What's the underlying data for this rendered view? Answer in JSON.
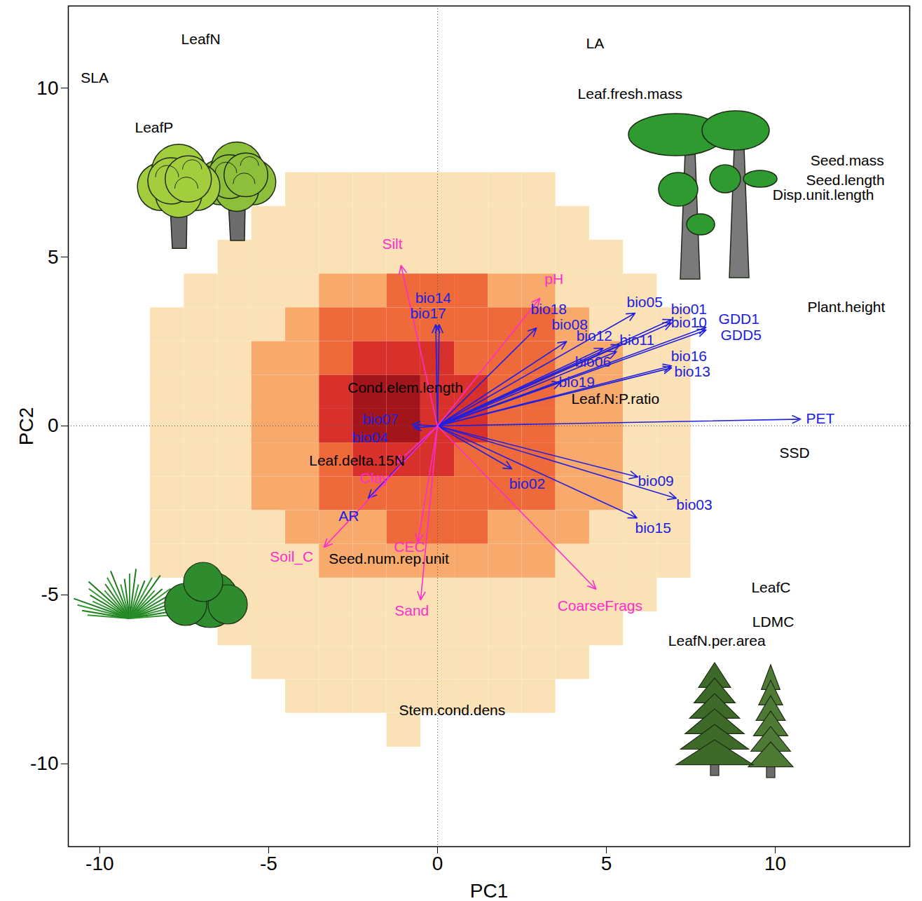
{
  "chart_data": {
    "type": "biplot",
    "x_label": "PC1",
    "y_label": "PC2",
    "xlim": [
      -10.93,
      13.98
    ],
    "ylim": [
      -12.45,
      12.43
    ],
    "xticks": [
      -10,
      -5,
      0,
      5,
      10
    ],
    "yticks": [
      -10,
      -5,
      0,
      5,
      10
    ],
    "origin": [
      0,
      0
    ],
    "density": {
      "x": [
        -9,
        -8,
        -7,
        -6,
        -5,
        -4,
        -3,
        -2,
        -1,
        0,
        1,
        2,
        3,
        4,
        5,
        6,
        7,
        8
      ],
      "y": [
        8,
        7,
        6,
        5,
        4,
        3,
        2,
        1,
        0,
        -1,
        -2,
        -3,
        -4,
        -5,
        -6,
        -7,
        -8,
        -9
      ],
      "levels": [
        [
          0,
          0,
          0,
          0,
          0,
          0,
          0,
          0,
          0,
          0,
          0,
          0,
          0,
          0,
          0,
          0,
          0,
          0
        ],
        [
          0,
          0,
          0,
          0,
          0,
          1,
          1,
          1,
          1,
          1,
          1,
          1,
          1,
          0,
          0,
          0,
          0,
          0
        ],
        [
          0,
          0,
          0,
          0,
          1,
          1,
          1,
          1,
          1,
          1,
          1,
          1,
          1,
          1,
          0,
          0,
          0,
          0
        ],
        [
          0,
          0,
          0,
          1,
          1,
          1,
          1,
          1,
          1,
          1,
          1,
          1,
          1,
          1,
          1,
          0,
          0,
          0
        ],
        [
          0,
          0,
          1,
          1,
          1,
          1,
          2,
          2,
          3,
          3,
          3,
          2,
          2,
          1,
          1,
          1,
          0,
          0
        ],
        [
          0,
          1,
          1,
          1,
          1,
          2,
          3,
          3,
          3,
          3,
          3,
          3,
          3,
          2,
          1,
          1,
          1,
          0
        ],
        [
          0,
          1,
          1,
          1,
          2,
          2,
          3,
          4,
          4,
          4,
          3,
          3,
          3,
          2,
          2,
          1,
          1,
          0
        ],
        [
          0,
          1,
          1,
          1,
          2,
          2,
          4,
          5,
          5,
          4,
          4,
          3,
          3,
          2,
          2,
          1,
          1,
          0
        ],
        [
          0,
          1,
          1,
          1,
          2,
          2,
          4,
          5,
          5,
          4,
          4,
          3,
          3,
          2,
          2,
          1,
          1,
          0
        ],
        [
          0,
          1,
          1,
          1,
          2,
          2,
          3,
          4,
          4,
          4,
          3,
          3,
          3,
          2,
          2,
          1,
          1,
          0
        ],
        [
          0,
          1,
          1,
          1,
          2,
          2,
          3,
          3,
          3,
          3,
          3,
          3,
          3,
          2,
          2,
          1,
          1,
          0
        ],
        [
          0,
          1,
          1,
          1,
          1,
          2,
          2,
          2,
          3,
          3,
          3,
          2,
          2,
          2,
          1,
          1,
          1,
          0
        ],
        [
          0,
          1,
          1,
          1,
          1,
          1,
          2,
          2,
          2,
          2,
          2,
          2,
          2,
          1,
          1,
          1,
          1,
          0
        ],
        [
          0,
          0,
          1,
          1,
          1,
          1,
          1,
          1,
          1,
          1,
          1,
          1,
          1,
          1,
          1,
          1,
          0,
          0
        ],
        [
          0,
          0,
          0,
          1,
          1,
          1,
          1,
          1,
          1,
          1,
          1,
          1,
          1,
          1,
          1,
          0,
          0,
          0
        ],
        [
          0,
          0,
          0,
          0,
          1,
          1,
          1,
          1,
          1,
          1,
          1,
          1,
          1,
          1,
          0,
          0,
          0,
          0
        ],
        [
          0,
          0,
          0,
          0,
          0,
          1,
          1,
          1,
          1,
          1,
          1,
          1,
          1,
          0,
          0,
          0,
          0,
          0
        ],
        [
          0,
          0,
          0,
          0,
          0,
          0,
          0,
          0,
          1,
          0,
          0,
          0,
          0,
          0,
          0,
          0,
          0,
          0
        ]
      ]
    },
    "arrows": [
      {
        "label": "bio14",
        "x": -0.05,
        "y": 3.0,
        "label_x": -0.66,
        "label_y": 3.78,
        "color": "#2020e0"
      },
      {
        "label": "bio17",
        "x": 0.05,
        "y": 3.0,
        "label_x": -0.81,
        "label_y": 3.32,
        "color": "#2020e0"
      },
      {
        "label": "bio18",
        "x": 2.93,
        "y": 2.9,
        "label_x": 2.76,
        "label_y": 3.44,
        "color": "#2020e0"
      },
      {
        "label": "bio08",
        "x": 3.82,
        "y": 2.5,
        "label_x": 3.38,
        "label_y": 2.99,
        "color": "#2020e0"
      },
      {
        "label": "bio05",
        "x": 5.85,
        "y": 3.34,
        "label_x": 5.6,
        "label_y": 3.65,
        "color": "#2020e0"
      },
      {
        "label": "bio01",
        "x": 6.93,
        "y": 3.15,
        "label_x": 6.91,
        "label_y": 3.46,
        "color": "#2020e0"
      },
      {
        "label": "bio10",
        "x": 6.93,
        "y": 3.05,
        "label_x": 6.91,
        "label_y": 3.05,
        "color": "#2020e0"
      },
      {
        "label": "GDD1",
        "x": 7.95,
        "y": 2.92,
        "label_x": 8.32,
        "label_y": 3.15,
        "color": "#2020e0"
      },
      {
        "label": "GDD5",
        "x": 7.95,
        "y": 2.84,
        "label_x": 8.38,
        "label_y": 2.68,
        "color": "#2020e0"
      },
      {
        "label": "bio12",
        "x": 4.9,
        "y": 2.3,
        "label_x": 4.11,
        "label_y": 2.66,
        "color": "#2020e0"
      },
      {
        "label": "bio11",
        "x": 5.4,
        "y": 2.4,
        "label_x": 5.39,
        "label_y": 2.53,
        "color": "#2020e0"
      },
      {
        "label": "bio06",
        "x": 5.3,
        "y": 2.2,
        "label_x": 4.07,
        "label_y": 1.89,
        "color": "#2020e0"
      },
      {
        "label": "bio16",
        "x": 6.93,
        "y": 1.78,
        "label_x": 6.91,
        "label_y": 2.05,
        "color": "#2020e0"
      },
      {
        "label": "bio13",
        "x": 6.93,
        "y": 1.72,
        "label_x": 7.01,
        "label_y": 1.6,
        "color": "#2020e0"
      },
      {
        "label": "bio19",
        "x": 3.65,
        "y": 1.29,
        "label_x": 3.59,
        "label_y": 1.29,
        "color": "#2020e0"
      },
      {
        "label": "PET",
        "x": 10.75,
        "y": 0.2,
        "label_x": 10.91,
        "label_y": 0.21,
        "color": "#2020e0"
      },
      {
        "label": "bio07",
        "x": -0.75,
        "y": 0.04,
        "label_x": -2.22,
        "label_y": 0.19,
        "color": "#2020e0"
      },
      {
        "label": "bio04",
        "x": -0.7,
        "y": -0.06,
        "label_x": -2.53,
        "label_y": -0.35,
        "color": "#2020e0"
      },
      {
        "label": "bio02",
        "x": 2.2,
        "y": -1.27,
        "label_x": 2.12,
        "label_y": -1.72,
        "color": "#2020e0"
      },
      {
        "label": "bio09",
        "x": 5.93,
        "y": -1.51,
        "label_x": 5.93,
        "label_y": -1.64,
        "color": "#2020e0"
      },
      {
        "label": "bio03",
        "x": 7.07,
        "y": -2.14,
        "label_x": 7.07,
        "label_y": -2.34,
        "color": "#2020e0"
      },
      {
        "label": "bio15",
        "x": 5.9,
        "y": -2.72,
        "label_x": 5.85,
        "label_y": -3.03,
        "color": "#2020e0"
      },
      {
        "label": "AR",
        "x": -2.05,
        "y": -2.14,
        "label_x": -2.93,
        "label_y": -2.68,
        "color": "#2020e0"
      },
      {
        "label": "Silt",
        "x": -1.08,
        "y": 4.75,
        "label_x": -1.64,
        "label_y": 5.39,
        "color": "#ff2ccc"
      },
      {
        "label": "pH",
        "x": 3.03,
        "y": 3.78,
        "label_x": 3.17,
        "label_y": 4.34,
        "color": "#ff2ccc"
      },
      {
        "label": "Clay",
        "x": -1.22,
        "y": -1.1,
        "label_x": -2.3,
        "label_y": -1.56,
        "color": "#ff2ccc"
      },
      {
        "label": "Soil_C",
        "x": -3.36,
        "y": -3.59,
        "label_x": -4.96,
        "label_y": -3.88,
        "color": "#ff2ccc"
      },
      {
        "label": "CEC",
        "x": -0.58,
        "y": -3.44,
        "label_x": -1.29,
        "label_y": -3.59,
        "color": "#ff2ccc"
      },
      {
        "label": "Sand",
        "x": -0.5,
        "y": -5.15,
        "label_x": -1.27,
        "label_y": -5.48,
        "color": "#ff2ccc"
      },
      {
        "label": "CoarseFrags",
        "x": 4.69,
        "y": -4.83,
        "label_x": 3.55,
        "label_y": -5.33,
        "color": "#ff2ccc"
      }
    ],
    "annotations": [
      {
        "text": "LeafN",
        "x": -7.59,
        "y": 11.43
      },
      {
        "text": "SLA",
        "x": -10.56,
        "y": 10.29
      },
      {
        "text": "LeafP",
        "x": -8.96,
        "y": 8.82
      },
      {
        "text": "LA",
        "x": 4.4,
        "y": 11.31
      },
      {
        "text": "Leaf.fresh.mass",
        "x": 4.15,
        "y": 9.81
      },
      {
        "text": "Seed.mass",
        "x": 11.04,
        "y": 7.84
      },
      {
        "text": "Seed.length",
        "x": 10.91,
        "y": 7.26
      },
      {
        "text": "Disp.unit.length",
        "x": 9.92,
        "y": 6.83
      },
      {
        "text": "Plant.height",
        "x": 10.95,
        "y": 3.51
      },
      {
        "text": "Cond.elem.length",
        "x": -2.66,
        "y": 1.12
      },
      {
        "text": "Leaf.N:P.ratio",
        "x": 3.96,
        "y": 0.79
      },
      {
        "text": "SSD",
        "x": 10.12,
        "y": -0.81
      },
      {
        "text": "Leaf.delta.15N",
        "x": -3.8,
        "y": -1.04
      },
      {
        "text": "Seed.num.rep.unit",
        "x": -3.22,
        "y": -3.94
      },
      {
        "text": "LeafC",
        "x": 9.29,
        "y": -4.79
      },
      {
        "text": "LDMC",
        "x": 9.32,
        "y": -5.81
      },
      {
        "text": "LeafN.per.area",
        "x": 6.83,
        "y": -6.37
      },
      {
        "text": "Stem.cond.dens",
        "x": -1.14,
        "y": -8.42
      }
    ]
  }
}
